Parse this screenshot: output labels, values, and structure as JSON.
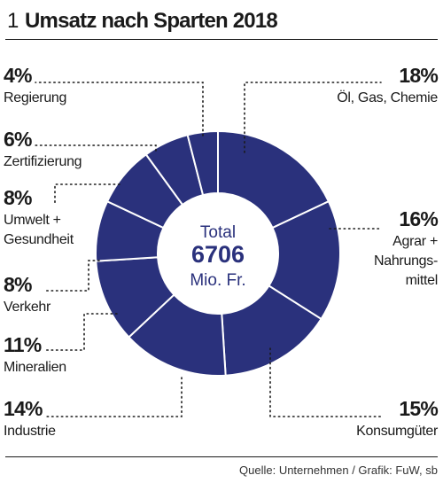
{
  "figure": {
    "number": "1",
    "title": "Umsatz nach Sparten 2018"
  },
  "chart_data": {
    "type": "pie",
    "style": "donut",
    "unit": "%",
    "center": {
      "line1": "Total",
      "value": "6706",
      "line3": "Mio. Fr."
    },
    "slices": [
      {
        "label": "Öl, Gas, Chemie",
        "value": 18,
        "display": "18%"
      },
      {
        "label": "Agrar + Nahrungsmittel",
        "value": 16,
        "display": "16%"
      },
      {
        "label": "Konsumgüter",
        "value": 15,
        "display": "15%"
      },
      {
        "label": "Industrie",
        "value": 14,
        "display": "14%"
      },
      {
        "label": "Mineralien",
        "value": 11,
        "display": "11%"
      },
      {
        "label": "Verkehr",
        "value": 8,
        "display": "8%"
      },
      {
        "label": "Umwelt + Gesundheit",
        "value": 8,
        "display": "8%"
      },
      {
        "label": "Zertifizierung",
        "value": 6,
        "display": "6%"
      },
      {
        "label": "Regierung",
        "value": 4,
        "display": "4%"
      }
    ],
    "colors": {
      "slice": "#2a317c",
      "separator": "#ffffff",
      "leader": "#1a1a1a"
    }
  },
  "labels": [
    {
      "pct": "18%",
      "lines": [
        "Öl, Gas, Chemie"
      ]
    },
    {
      "pct": "16%",
      "lines": [
        "Agrar +",
        "Nahrungs-",
        "mittel"
      ]
    },
    {
      "pct": "15%",
      "lines": [
        "Konsumgüter"
      ]
    },
    {
      "pct": "14%",
      "lines": [
        "Industrie"
      ]
    },
    {
      "pct": "11%",
      "lines": [
        "Mineralien"
      ]
    },
    {
      "pct": "8%",
      "lines": [
        "Verkehr"
      ]
    },
    {
      "pct": "8%",
      "lines": [
        "Umwelt +",
        "Gesundheit"
      ]
    },
    {
      "pct": "6%",
      "lines": [
        "Zertifizierung"
      ]
    },
    {
      "pct": "4%",
      "lines": [
        "Regierung"
      ]
    }
  ],
  "source": "Quelle: Unternehmen / Grafik: FuW, sb"
}
